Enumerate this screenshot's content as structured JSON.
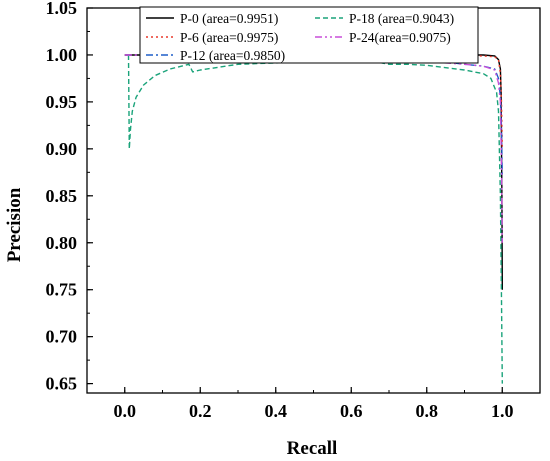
{
  "chart_data": {
    "type": "line",
    "title": "",
    "xlabel": "Recall",
    "ylabel": "Precision",
    "xlim": [
      -0.1,
      1.1
    ],
    "ylim": [
      0.64,
      1.05
    ],
    "xticks": [
      "0.0",
      "0.2",
      "0.4",
      "0.6",
      "0.8",
      "1.0"
    ],
    "xtick_values": [
      0.0,
      0.2,
      0.4,
      0.6,
      0.8,
      1.0
    ],
    "yticks": [
      "0.65",
      "0.70",
      "0.75",
      "0.80",
      "0.85",
      "0.90",
      "0.95",
      "1.00",
      "1.05"
    ],
    "ytick_values": [
      0.65,
      0.7,
      0.75,
      0.8,
      0.85,
      0.9,
      0.95,
      1.0,
      1.05
    ],
    "grid": false,
    "legend_position": "top",
    "series": [
      {
        "name": "P-0 (area=0.9951)",
        "color": "#000000",
        "dash": "solid",
        "x": [
          0.0,
          0.2,
          0.4,
          0.6,
          0.8,
          0.95,
          0.98,
          0.99,
          0.995,
          0.997,
          0.999,
          1.0
        ],
        "y": [
          1.0,
          1.0,
          1.0,
          1.0,
          1.0,
          1.0,
          0.999,
          0.995,
          0.985,
          0.96,
          0.85,
          0.75
        ]
      },
      {
        "name": "P-6 (area=0.9975)",
        "color": "#e8392c",
        "dash": "dotted",
        "x": [
          0.0,
          0.2,
          0.4,
          0.6,
          0.8,
          0.95,
          0.98,
          0.99,
          0.995,
          0.998,
          1.0
        ],
        "y": [
          1.0,
          1.0,
          1.0,
          1.0,
          0.999,
          0.999,
          0.998,
          0.995,
          0.98,
          0.95,
          0.9
        ]
      },
      {
        "name": "P-12 (area=0.9850)",
        "color": "#1f5ec9",
        "dash": "dashdot",
        "x": [
          0.0,
          0.2,
          0.4,
          0.6,
          0.8,
          0.9,
          0.95,
          0.98,
          0.99,
          0.995,
          0.998,
          1.0
        ],
        "y": [
          1.0,
          1.0,
          1.0,
          1.0,
          0.995,
          0.99,
          0.988,
          0.985,
          0.975,
          0.955,
          0.92,
          0.87
        ]
      },
      {
        "name": "P-18 (area=0.9043)",
        "color": "#1aa37a",
        "dash": "dashed",
        "x": [
          0.01,
          0.012,
          0.015,
          0.02,
          0.03,
          0.05,
          0.08,
          0.12,
          0.15,
          0.17,
          0.18,
          0.2,
          0.3,
          0.5,
          0.65,
          0.7,
          0.75,
          0.8,
          0.9,
          0.95,
          0.97,
          0.985,
          0.99,
          0.995,
          0.998,
          1.0
        ],
        "y": [
          1.0,
          0.9,
          0.92,
          0.94,
          0.955,
          0.968,
          0.978,
          0.985,
          0.988,
          0.99,
          0.982,
          0.984,
          0.99,
          0.993,
          0.994,
          0.99,
          0.99,
          0.989,
          0.984,
          0.98,
          0.975,
          0.96,
          0.94,
          0.85,
          0.74,
          0.65
        ]
      },
      {
        "name": "P-24(area=0.9075)",
        "color": "#c84fd8",
        "dash": "dashdotdot",
        "x": [
          0.0,
          0.2,
          0.4,
          0.6,
          0.75,
          0.78,
          0.8,
          0.9,
          0.95,
          0.98,
          0.99,
          0.995,
          0.998,
          1.0
        ],
        "y": [
          1.0,
          1.0,
          1.0,
          1.0,
          0.998,
          0.994,
          0.993,
          0.99,
          0.988,
          0.984,
          0.97,
          0.95,
          0.88,
          0.8
        ]
      }
    ]
  }
}
